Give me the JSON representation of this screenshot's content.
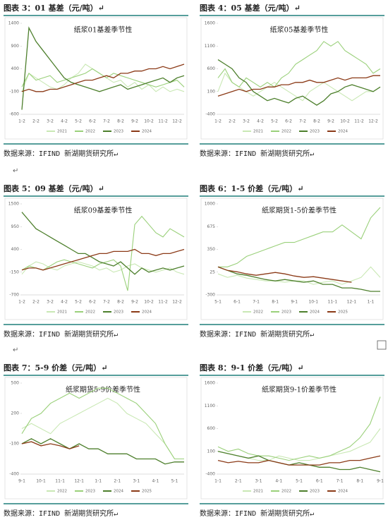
{
  "chart_data": [
    {
      "type": "line",
      "caption": "图表 3：01 基差（元/吨）↵",
      "source": "数据来源：IFIND 新湖期货研究所↵",
      "title": "纸浆01基差季节性",
      "categories": [
        "1-2",
        null,
        "2-2",
        null,
        "3-2",
        null,
        "4-2",
        null,
        "5-2",
        null,
        "6-2",
        null,
        "7-2",
        null,
        "8-2",
        null,
        "9-2",
        null,
        "10-2",
        null,
        "11-2",
        null,
        "12-2",
        null
      ],
      "ylim": [
        -600,
        1400
      ],
      "yticks": [
        -600,
        -100,
        400,
        900,
        1400
      ],
      "series": [
        {
          "name": "2021",
          "color": "#c9e8b4",
          "values": [
            -100,
            300,
            200,
            100,
            0,
            -50,
            50,
            200,
            300,
            500,
            400,
            300,
            200,
            100,
            150,
            0,
            100,
            -50,
            50,
            -100,
            0,
            -100,
            -50,
            -100
          ]
        },
        {
          "name": "2022",
          "color": "#9ad07a",
          "values": [
            0,
            300,
            150,
            200,
            250,
            100,
            150,
            200,
            250,
            300,
            400,
            300,
            200,
            300,
            250,
            200,
            150,
            100,
            50,
            0,
            50,
            100,
            150,
            0
          ]
        },
        {
          "name": "2023",
          "color": "#4d7f2c",
          "values": [
            -500,
            1300,
            1000,
            800,
            600,
            400,
            200,
            100,
            50,
            0,
            -50,
            -100,
            -50,
            0,
            50,
            -50,
            0,
            50,
            100,
            150,
            200,
            100,
            200,
            250
          ]
        },
        {
          "name": "2024",
          "color": "#8b3a17",
          "values": [
            -100,
            -50,
            -100,
            -100,
            -50,
            -50,
            0,
            50,
            100,
            150,
            150,
            200,
            250,
            200,
            300,
            300,
            350,
            350,
            400,
            400,
            450,
            400,
            450,
            500
          ]
        }
      ]
    },
    {
      "type": "line",
      "caption": "图表 4：05 基差（元/吨）↵",
      "source": "数据来源：IFIND 新湖期货研究所↵",
      "title": "纸浆05基差季节性",
      "categories": [
        "1-2",
        null,
        "2-2",
        null,
        "3-2",
        null,
        "4-2",
        null,
        "5-2",
        null,
        "6-2",
        null,
        "7-2",
        null,
        "8-2",
        null,
        "9-2",
        null,
        "10-2",
        null,
        "11-2",
        null,
        "12-2",
        null
      ],
      "ylim": [
        -400,
        1600
      ],
      "yticks": [
        -400,
        100,
        600,
        1100,
        1600
      ],
      "series": [
        {
          "name": "2021",
          "color": "#c9e8b4",
          "values": [
            100,
            500,
            300,
            200,
            100,
            0,
            100,
            200,
            300,
            200,
            100,
            0,
            -100,
            100,
            200,
            300,
            200,
            100,
            0,
            -100,
            0,
            100,
            100,
            200
          ]
        },
        {
          "name": "2022",
          "color": "#9ad07a",
          "values": [
            400,
            600,
            300,
            200,
            400,
            300,
            200,
            300,
            200,
            400,
            500,
            700,
            800,
            900,
            1000,
            1200,
            1100,
            1200,
            1000,
            900,
            800,
            700,
            500,
            600
          ]
        },
        {
          "name": "2023",
          "color": "#4d7f2c",
          "values": [
            800,
            700,
            600,
            400,
            300,
            100,
            0,
            -100,
            -50,
            -100,
            -150,
            -50,
            0,
            -100,
            -200,
            -100,
            50,
            100,
            200,
            250,
            200,
            150,
            100,
            200
          ]
        },
        {
          "name": "2024",
          "color": "#8b3a17",
          "values": [
            0,
            50,
            100,
            150,
            100,
            150,
            150,
            200,
            200,
            250,
            250,
            300,
            300,
            350,
            300,
            300,
            350,
            400,
            350,
            400,
            400,
            400,
            450,
            450
          ]
        }
      ]
    },
    {
      "type": "line",
      "caption": "图表 5：09 基差（元/吨）↵",
      "source": "数据来源：IFIND 新湖期货研究所↵",
      "title": "纸浆09基差季节性",
      "categories": [
        "1-2",
        null,
        "2-2",
        null,
        "3-2",
        null,
        "4-2",
        null,
        "5-2",
        null,
        "6-2",
        null,
        "7-2",
        null,
        "8-2",
        null,
        "9-2",
        null,
        "10-2",
        null,
        "11-2",
        null,
        "12-2",
        null
      ],
      "ylim": [
        -700,
        1500
      ],
      "yticks": [
        -700,
        -150,
        400,
        950,
        1500
      ],
      "series": [
        {
          "name": "2021",
          "color": "#c9e8b4",
          "values": [
            -200,
            0,
            100,
            50,
            -50,
            -100,
            0,
            50,
            100,
            50,
            0,
            -100,
            -50,
            -150,
            -100,
            0,
            50,
            -50,
            -100,
            -150,
            -100,
            -50,
            -150,
            -200
          ]
        },
        {
          "name": "2022",
          "color": "#9ad07a",
          "values": [
            -100,
            0,
            -50,
            -100,
            0,
            100,
            150,
            100,
            50,
            0,
            -50,
            50,
            100,
            150,
            0,
            -600,
            1000,
            1200,
            1000,
            800,
            700,
            900,
            800,
            700
          ]
        },
        {
          "name": "2023",
          "color": "#4d7f2c",
          "values": [
            1300,
            1100,
            900,
            800,
            700,
            600,
            500,
            400,
            300,
            300,
            200,
            100,
            50,
            0,
            100,
            -50,
            -200,
            -50,
            -150,
            -100,
            -50,
            -100,
            -50,
            0
          ]
        },
        {
          "name": "2024",
          "color": "#8b3a17",
          "values": [
            -100,
            -50,
            -50,
            -100,
            -50,
            0,
            50,
            100,
            150,
            200,
            250,
            300,
            300,
            350,
            350,
            350,
            400,
            300,
            300,
            250,
            300,
            300,
            350,
            400
          ]
        }
      ]
    },
    {
      "type": "line",
      "caption": "图表 6：1-5 价差（元/吨）↵",
      "source": "数据来源：IFIND 新湖期货研究所↵",
      "title": "纸浆期货1-5价差季节性",
      "categories": [
        "5-1",
        null,
        "6-1",
        null,
        "7-1",
        null,
        "8-1",
        null,
        "9-1",
        null,
        "10-1",
        null,
        "11-1",
        null,
        "12-1",
        null,
        "1-1",
        null
      ],
      "ylim": [
        -300,
        1000
      ],
      "yticks": [
        -300,
        25,
        350,
        675,
        1000
      ],
      "series": [
        {
          "name": "2022",
          "color": "#c9e8b4",
          "values": [
            0,
            -50,
            -20,
            -60,
            -80,
            -100,
            -100,
            -120,
            -100,
            -100,
            -150,
            -120,
            -100,
            -150,
            -100,
            -50,
            100,
            -50
          ]
        },
        {
          "name": "2023",
          "color": "#9ad07a",
          "values": [
            100,
            100,
            150,
            250,
            300,
            350,
            400,
            450,
            450,
            500,
            550,
            600,
            600,
            700,
            600,
            500,
            800,
            950
          ]
        },
        {
          "name": "2024",
          "color": "#4d7f2c",
          "values": [
            100,
            50,
            0,
            -20,
            -50,
            -80,
            -100,
            -80,
            -100,
            -120,
            -100,
            -150,
            -150,
            -200,
            -200,
            -220,
            -250,
            -250
          ]
        },
        {
          "name": "2025",
          "color": "#8b3a17",
          "values": [
            100,
            50,
            30,
            0,
            -20,
            0,
            20,
            0,
            -30,
            -50,
            -40,
            -60,
            -80,
            -100,
            -120,
            null,
            null,
            null
          ]
        }
      ]
    },
    {
      "type": "line",
      "caption": "图表 7：5-9 价差（元/吨）↵",
      "source": "数据来源：IFIND 新湖期货研究所↵",
      "title": "纸浆期货5-9价差季节性",
      "categories": [
        "9-1",
        null,
        "10-1",
        null,
        "11-1",
        null,
        "12-1",
        null,
        "1-1",
        null,
        "2-1",
        null,
        "3-1",
        null,
        "4-1",
        null,
        "5-1",
        null
      ],
      "ylim": [
        -400,
        500
      ],
      "yticks": [
        -400,
        -100,
        200,
        500
      ],
      "series": [
        {
          "name": "2022",
          "color": "#c9e8b4",
          "values": [
            50,
            100,
            50,
            0,
            100,
            150,
            200,
            250,
            300,
            350,
            300,
            200,
            150,
            100,
            0,
            -100,
            -250,
            -250
          ]
        },
        {
          "name": "2023",
          "color": "#9ad07a",
          "values": [
            0,
            150,
            200,
            300,
            350,
            400,
            350,
            400,
            450,
            450,
            400,
            350,
            300,
            200,
            100,
            -100,
            -250,
            -250
          ]
        },
        {
          "name": "2024",
          "color": "#4d7f2c",
          "values": [
            -100,
            -50,
            -100,
            -50,
            -100,
            -150,
            -100,
            -150,
            -150,
            -200,
            -200,
            -200,
            -250,
            -250,
            -250,
            -300,
            -280,
            -280
          ]
        },
        {
          "name": "2025",
          "color": "#8b3a17",
          "values": [
            -100,
            -80,
            -120,
            -100,
            -120,
            -150,
            -120,
            null,
            null,
            null,
            null,
            null,
            null,
            null,
            null,
            null,
            null,
            null
          ]
        }
      ]
    },
    {
      "type": "line",
      "caption": "图表 8：9-1 价差（元/吨）↵",
      "source": "数据来源：IFIND 新湖期货研究所↵",
      "title": "纸浆期货9-1价差季节性",
      "categories": [
        "1-1",
        null,
        "2-1",
        null,
        "3-1",
        null,
        "4-1",
        null,
        "5-1",
        null,
        "6-1",
        null,
        "7-1",
        null,
        "8-1",
        null,
        "9-1"
      ],
      "ylim": [
        -400,
        1600
      ],
      "yticks": [
        -400,
        100,
        600,
        1100,
        1600
      ],
      "series": [
        {
          "name": "2021",
          "color": "#c9e8b4",
          "values": [
            100,
            50,
            0,
            -50,
            -100,
            -100,
            0,
            -50,
            -100,
            -100,
            -50,
            0,
            50,
            100,
            200,
            300,
            600
          ]
        },
        {
          "name": "2022",
          "color": "#9ad07a",
          "values": [
            200,
            100,
            150,
            50,
            0,
            0,
            -50,
            -100,
            -50,
            0,
            -50,
            0,
            100,
            200,
            400,
            700,
            1300
          ]
        },
        {
          "name": "2023",
          "color": "#4d7f2c",
          "values": [
            100,
            50,
            0,
            -50,
            0,
            -100,
            -150,
            -200,
            -150,
            -200,
            -250,
            -250,
            -300,
            -300,
            -250,
            -300,
            -350
          ]
        },
        {
          "name": "2024",
          "color": "#8b3a17",
          "values": [
            -100,
            -150,
            -120,
            -150,
            -150,
            -100,
            -150,
            -200,
            -200,
            -200,
            -200,
            -150,
            -150,
            -100,
            -100,
            -50,
            0
          ]
        }
      ]
    }
  ],
  "breaks": [
    "↵",
    "↵",
    "↵"
  ]
}
